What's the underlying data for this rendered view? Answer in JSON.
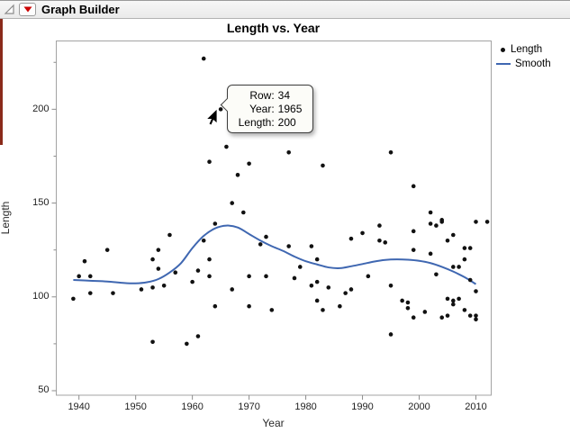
{
  "header": {
    "title": "Graph Builder"
  },
  "icons": {
    "disclosure": "expanded-outline-triangle",
    "red_triangle": "red-triangle-menu"
  },
  "legend": {
    "items": [
      {
        "label": "Length",
        "marker": "dot",
        "color": "#111111"
      },
      {
        "label": "Smooth",
        "marker": "line",
        "color": "#3f67b1"
      }
    ]
  },
  "tooltip": {
    "rows": [
      {
        "label": "Row:",
        "value": "34"
      },
      {
        "label": "Year:",
        "value": "1965"
      },
      {
        "label": "Length:",
        "value": "200"
      }
    ]
  },
  "colors": {
    "smooth_line": "#3f67b1",
    "marker": "#111111",
    "frame": "#a3a3a3",
    "tick": "#8c8c8c",
    "accent_bar": "#8a2a1a",
    "red_triangle": "#cc0000"
  },
  "chart_data": {
    "type": "scatter",
    "title": "Length vs. Year",
    "xlabel": "Year",
    "ylabel": "Length",
    "x_domain": [
      1936,
      2012.7
    ],
    "y_domain": [
      47.6,
      236.4
    ],
    "x_ticks": [
      1940,
      1950,
      1960,
      1970,
      1980,
      1990,
      2000,
      2010
    ],
    "y_ticks": [
      50,
      100,
      150,
      200
    ],
    "y_minor_ticks": [
      75,
      125,
      175,
      225
    ],
    "grid": false,
    "legend_position": "top-right",
    "highlighted_point": {
      "row": 34,
      "year": 1965,
      "length": 200
    },
    "series": [
      {
        "name": "Length",
        "type": "scatter",
        "color": "#111111",
        "points": [
          [
            1939,
            99
          ],
          [
            1940,
            111
          ],
          [
            1941,
            119
          ],
          [
            1942,
            111
          ],
          [
            1942,
            102
          ],
          [
            1945,
            125
          ],
          [
            1946,
            102
          ],
          [
            1951,
            104
          ],
          [
            1953,
            120
          ],
          [
            1954,
            125
          ],
          [
            1954,
            115
          ],
          [
            1953,
            105
          ],
          [
            1955,
            106
          ],
          [
            1956,
            133
          ],
          [
            1957,
            113
          ],
          [
            1953,
            76
          ],
          [
            1959,
            75
          ],
          [
            1960,
            108
          ],
          [
            1961,
            114
          ],
          [
            1961,
            79
          ],
          [
            1962,
            130
          ],
          [
            1963,
            120
          ],
          [
            1963,
            111
          ],
          [
            1964,
            139
          ],
          [
            1964,
            95
          ],
          [
            1967,
            104
          ],
          [
            1970,
            111
          ],
          [
            1970,
            95
          ],
          [
            1972,
            128
          ],
          [
            1973,
            132
          ],
          [
            1973,
            111
          ],
          [
            1974,
            93
          ],
          [
            1962,
            227
          ],
          [
            1965,
            200
          ],
          [
            1966,
            180
          ],
          [
            1963,
            172
          ],
          [
            1970,
            171
          ],
          [
            1968,
            165
          ],
          [
            1967,
            150
          ],
          [
            1969,
            145
          ],
          [
            1977,
            177
          ],
          [
            1983,
            170
          ],
          [
            1995,
            177
          ],
          [
            1999,
            159
          ],
          [
            2002,
            145
          ],
          [
            2004,
            141
          ],
          [
            1977,
            127
          ],
          [
            1981,
            127
          ],
          [
            1979,
            116
          ],
          [
            1982,
            120
          ],
          [
            1978,
            110
          ],
          [
            1981,
            106
          ],
          [
            1982,
            108
          ],
          [
            1984,
            105
          ],
          [
            1983,
            93
          ],
          [
            1982,
            98
          ],
          [
            1986,
            95
          ],
          [
            1987,
            102
          ],
          [
            1988,
            104
          ],
          [
            1988,
            131
          ],
          [
            1990,
            134
          ],
          [
            1991,
            111
          ],
          [
            1993,
            138
          ],
          [
            1993,
            130
          ],
          [
            1994,
            129
          ],
          [
            1995,
            106
          ],
          [
            1997,
            98
          ],
          [
            1998,
            97
          ],
          [
            1998,
            94
          ],
          [
            1999,
            135
          ],
          [
            1999,
            125
          ],
          [
            1999,
            89
          ],
          [
            2001,
            92
          ],
          [
            2002,
            123
          ],
          [
            2003,
            112
          ],
          [
            1995,
            80
          ],
          [
            2002,
            139
          ],
          [
            2003,
            138
          ],
          [
            2004,
            140
          ],
          [
            2010,
            140
          ],
          [
            2005,
            130
          ],
          [
            2006,
            133
          ],
          [
            2008,
            126
          ],
          [
            2009,
            126
          ],
          [
            2008,
            120
          ],
          [
            2006,
            116
          ],
          [
            2007,
            116
          ],
          [
            2009,
            109
          ],
          [
            2005,
            99
          ],
          [
            2006,
            98
          ],
          [
            2007,
            99
          ],
          [
            2006,
            96
          ],
          [
            2008,
            93
          ],
          [
            2004,
            89
          ],
          [
            2005,
            90
          ],
          [
            2009,
            90
          ],
          [
            2010,
            88
          ],
          [
            2010,
            90
          ],
          [
            2010,
            103
          ],
          [
            2012,
            140
          ]
        ]
      },
      {
        "name": "Smooth",
        "type": "line",
        "color": "#3f67b1",
        "points": [
          [
            1939,
            109
          ],
          [
            1942,
            108.6
          ],
          [
            1945,
            108.2
          ],
          [
            1948,
            107.4
          ],
          [
            1950,
            107.2
          ],
          [
            1952,
            107.8
          ],
          [
            1954,
            109.5
          ],
          [
            1956,
            113
          ],
          [
            1958,
            118
          ],
          [
            1960,
            126
          ],
          [
            1962,
            132.5
          ],
          [
            1964,
            136.5
          ],
          [
            1966,
            138
          ],
          [
            1968,
            137
          ],
          [
            1970,
            133.5
          ],
          [
            1972,
            130
          ],
          [
            1974,
            127
          ],
          [
            1976,
            124.5
          ],
          [
            1978,
            121.5
          ],
          [
            1980,
            119
          ],
          [
            1982,
            117.3
          ],
          [
            1984,
            115.7
          ],
          [
            1986,
            115.3
          ],
          [
            1988,
            116.3
          ],
          [
            1990,
            117.5
          ],
          [
            1992,
            118.8
          ],
          [
            1994,
            119.7
          ],
          [
            1996,
            120
          ],
          [
            1998,
            119.8
          ],
          [
            2000,
            119.2
          ],
          [
            2002,
            118
          ],
          [
            2004,
            116
          ],
          [
            2006,
            113.5
          ],
          [
            2008,
            110.5
          ],
          [
            2010,
            106.8
          ]
        ]
      }
    ]
  }
}
